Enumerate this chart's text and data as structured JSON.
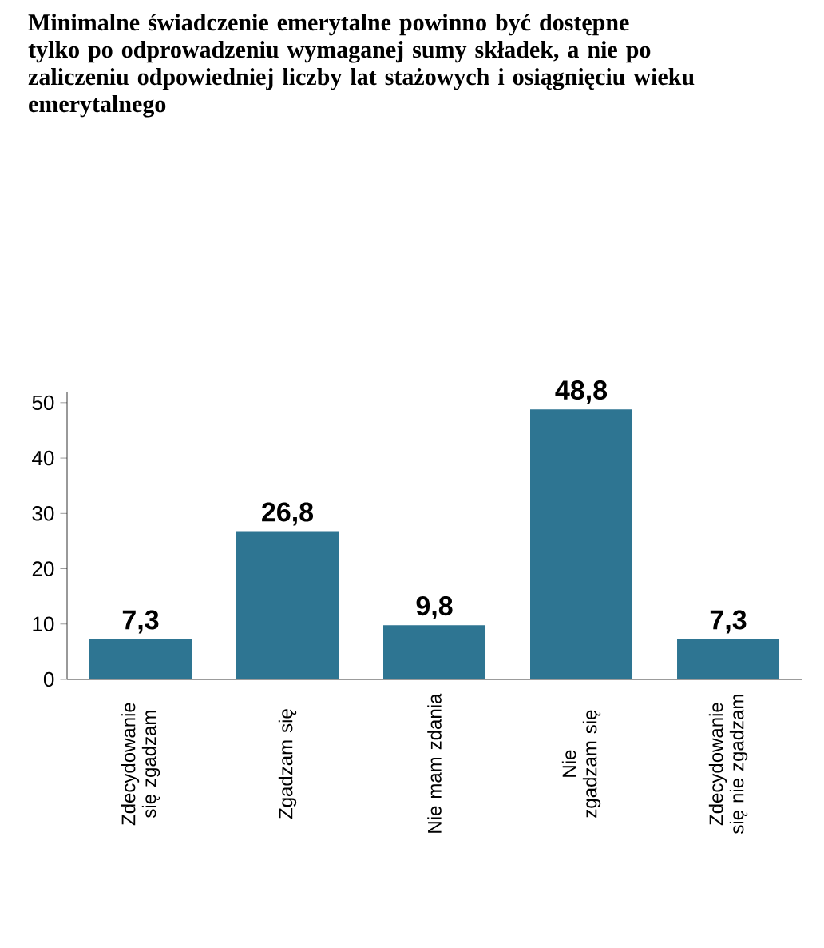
{
  "chart_data": {
    "type": "bar",
    "title": "Minimalne świadczenie emerytalne powinno być dostępne tylko po odprowadzeniu wymaganej sumy składek, a nie po zaliczeniu odpowiedniej liczby lat stażowych i osiągnięciu wieku emerytalnego",
    "categories": [
      "Zdecydowanie się zgadzam",
      "Zgadzam się",
      "Nie mam zdania",
      "Nie zgadzam się",
      "Zdecydowanie się nie zgadzam"
    ],
    "values": [
      7.3,
      26.8,
      9.8,
      48.8,
      7.3
    ],
    "color": "#2e7592",
    "ylim": [
      0,
      52
    ],
    "yticks": [
      0,
      10,
      20,
      30,
      40,
      50
    ],
    "value_labels": [
      "7,3",
      "26,8",
      "9,8",
      "48,8",
      "7,3"
    ]
  }
}
